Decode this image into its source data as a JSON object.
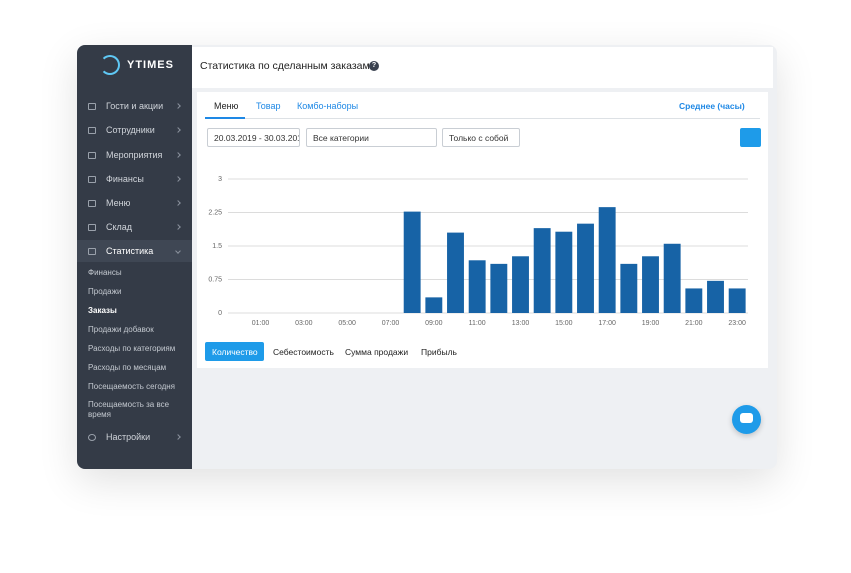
{
  "logo": "YTIMES",
  "menu": [
    "Гости и акции",
    "Сотрудники",
    "Мероприятия",
    "Финансы",
    "Меню",
    "Склад",
    "Статистика"
  ],
  "submenu": [
    "Финансы",
    "Продажи",
    "Заказы",
    "Продажи добавок",
    "Расходы по категориям",
    "Расходы по месяцам",
    "Посещаемость сегодня",
    "Посещаемость за все время"
  ],
  "settings": "Настройки",
  "header": {
    "title": "Статистика по сделанным заказам",
    "help": "?"
  },
  "tabs": [
    "Меню",
    "Товар",
    "Комбо-наборы"
  ],
  "mode": "Среднее (часы)",
  "filters": [
    "20.03.2019 - 30.03.201",
    "Все категории",
    "Только с собой"
  ],
  "metrics": [
    "Количество",
    "Себестоимость",
    "Сумма продажи",
    "Прибыль"
  ],
  "chart_data": {
    "type": "bar",
    "categories": [
      null,
      "01:00",
      null,
      "03:00",
      null,
      "05:00",
      null,
      "07:00",
      null,
      "09:00",
      null,
      "11:00",
      null,
      "13:00",
      null,
      "15:00",
      null,
      "17:00",
      null,
      "19:00",
      null,
      "21:00",
      null,
      "23:00"
    ],
    "values": [
      0,
      0,
      0,
      0,
      0,
      0,
      0,
      0,
      2.27,
      0.35,
      1.8,
      1.18,
      1.1,
      1.27,
      1.9,
      1.82,
      2.0,
      2.37,
      1.1,
      1.27,
      1.55,
      0.55,
      0.72,
      0.55
    ],
    "color": "#1763a6",
    "ylim": [
      0,
      3
    ],
    "yticks": [
      0,
      0.75,
      1.5,
      2.25,
      3
    ],
    "grid": true
  }
}
